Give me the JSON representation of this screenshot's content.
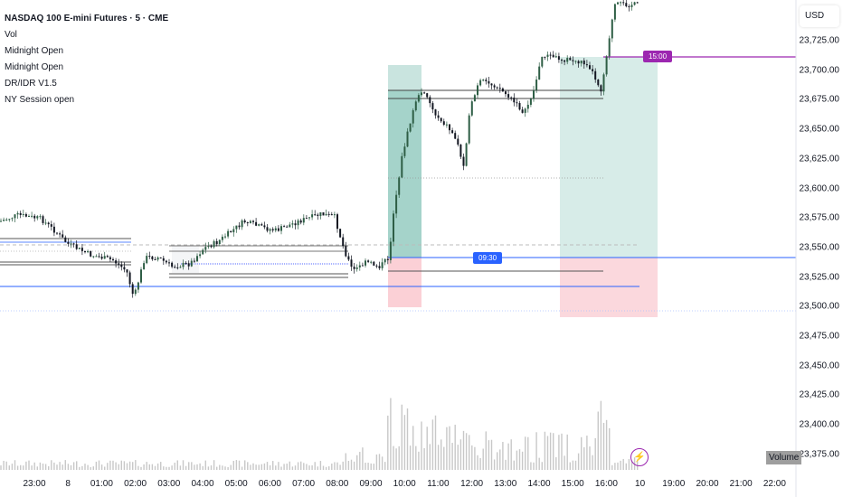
{
  "legend": {
    "title": "NASDAQ 100 E-mini Futures · 5 · CME",
    "indicators": [
      "Vol",
      "Midnight Open",
      "Midnight Open",
      "DR/IDR V1.5",
      "NY Session open"
    ]
  },
  "price_axis": {
    "currency": "USD",
    "labels": [
      "23,725.00",
      "23,700.00",
      "23,675.00",
      "23,650.00",
      "23,625.00",
      "23,600.00",
      "23,575.00",
      "23,550.00",
      "23,525.00",
      "23,500.00",
      "23,475.00",
      "23,450.00",
      "23,425.00",
      "23,400.00",
      "23,375.00"
    ]
  },
  "time_axis": {
    "labels": [
      "23:00",
      "8",
      "01:00",
      "02:00",
      "03:00",
      "04:00",
      "05:00",
      "06:00",
      "07:00",
      "08:00",
      "09:00",
      "10:00",
      "11:00",
      "12:00",
      "13:00",
      "14:00",
      "15:00",
      "16:00",
      "10",
      "19:00",
      "20:00",
      "21:00",
      "22:00"
    ]
  },
  "tags": {
    "ny_open": "09:30",
    "afternoon": "15:00"
  },
  "volume_button": "Volume",
  "colors": {
    "up": "#2e5e45",
    "down": "#131722",
    "teal": "#4ba896",
    "red": "#f7a9b4",
    "blue": "#2962ff",
    "purple": "#9c27b0"
  }
}
